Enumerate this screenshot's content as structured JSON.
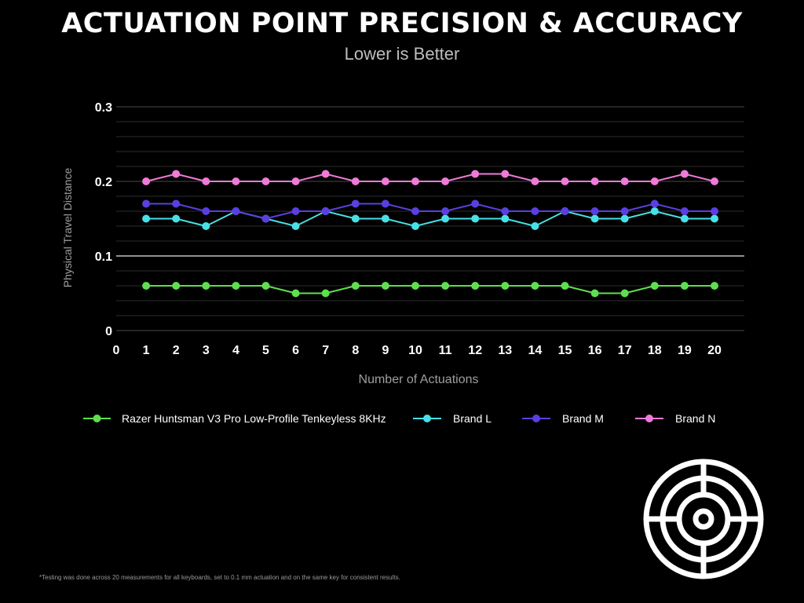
{
  "title": "ACTUATION POINT PRECISION & ACCURACY",
  "subtitle": "Lower is Better",
  "footnote": "*Testing was done across 20 measurements for all keyboards, set to 0.1 mm actuation and on the same key for consistent results.",
  "decor": {
    "icon": "target-icon",
    "color": "#ffffff"
  },
  "chart_data": {
    "type": "line",
    "xlabel": "Number of Actuations",
    "ylabel": "Physical Travel Distance",
    "xlim": [
      0,
      20
    ],
    "ylim": [
      0,
      0.3
    ],
    "x_ticks": [
      "0",
      "1",
      "2",
      "3",
      "4",
      "5",
      "6",
      "7",
      "8",
      "9",
      "10",
      "11",
      "12",
      "13",
      "14",
      "15",
      "16",
      "17",
      "18",
      "19",
      "20"
    ],
    "y_ticks": [
      "0",
      "0.1",
      "0.2",
      "0.3"
    ],
    "minor_gridlines": [
      0.02,
      0.04,
      0.06,
      0.08,
      0.12,
      0.14,
      0.16,
      0.18,
      0.22,
      0.24,
      0.26,
      0.28
    ],
    "major_gridlines": [
      0.1,
      0.2,
      0.3
    ],
    "grid": true,
    "legend_position": "bottom",
    "x": [
      1,
      2,
      3,
      4,
      5,
      6,
      7,
      8,
      9,
      10,
      11,
      12,
      13,
      14,
      15,
      16,
      17,
      18,
      19,
      20
    ],
    "series": [
      {
        "name": "Razer Huntsman V3 Pro Low-Profile Tenkeyless 8KHz",
        "color": "#5fdf4f",
        "values": [
          0.06,
          0.06,
          0.06,
          0.06,
          0.06,
          0.05,
          0.05,
          0.06,
          0.06,
          0.06,
          0.06,
          0.06,
          0.06,
          0.06,
          0.06,
          0.05,
          0.05,
          0.06,
          0.06,
          0.06
        ]
      },
      {
        "name": "Brand L",
        "color": "#47e0e6",
        "values": [
          0.15,
          0.15,
          0.14,
          0.16,
          0.15,
          0.14,
          0.16,
          0.15,
          0.15,
          0.14,
          0.15,
          0.15,
          0.15,
          0.14,
          0.16,
          0.15,
          0.15,
          0.16,
          0.15,
          0.15
        ]
      },
      {
        "name": "Brand M",
        "color": "#5a3fe0",
        "values": [
          0.17,
          0.17,
          0.16,
          0.16,
          0.15,
          0.16,
          0.16,
          0.17,
          0.17,
          0.16,
          0.16,
          0.17,
          0.16,
          0.16,
          0.16,
          0.16,
          0.16,
          0.17,
          0.16,
          0.16
        ]
      },
      {
        "name": "Brand N",
        "color": "#f07ad8",
        "values": [
          0.2,
          0.21,
          0.2,
          0.2,
          0.2,
          0.2,
          0.21,
          0.2,
          0.2,
          0.2,
          0.2,
          0.21,
          0.21,
          0.2,
          0.2,
          0.2,
          0.2,
          0.2,
          0.21,
          0.2
        ]
      }
    ]
  }
}
